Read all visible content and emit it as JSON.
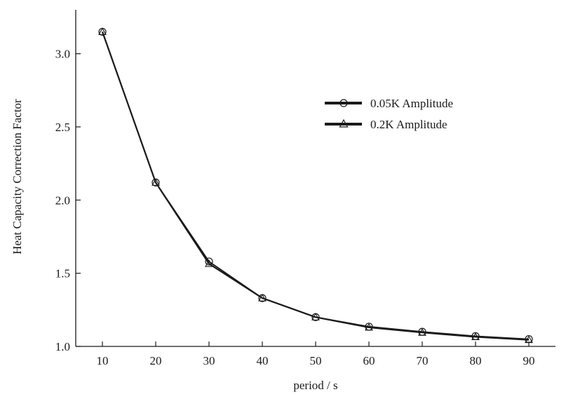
{
  "chart_data": {
    "type": "line",
    "title": "",
    "xlabel": "period / s",
    "ylabel": "Heat Capacity Correction Factor",
    "x": [
      10,
      20,
      30,
      40,
      50,
      60,
      70,
      80,
      90
    ],
    "xlim": [
      5,
      95
    ],
    "ylim": [
      1.0,
      3.3
    ],
    "xticks": [
      10,
      20,
      30,
      40,
      50,
      60,
      70,
      80,
      90
    ],
    "yticks": [
      1.0,
      1.5,
      2.0,
      2.5,
      3.0
    ],
    "ytick_labels": [
      "1.0",
      "1.5",
      "2.0",
      "2.5",
      "3.0"
    ],
    "grid": false,
    "legend_position": "upper-right",
    "series": [
      {
        "name": "0.05K Amplitude",
        "marker": "circle",
        "values": [
          3.15,
          2.12,
          1.58,
          1.33,
          1.2,
          1.135,
          1.1,
          1.07,
          1.05
        ]
      },
      {
        "name": "0.2K Amplitude",
        "marker": "triangle",
        "values": [
          3.15,
          2.12,
          1.565,
          1.33,
          1.2,
          1.13,
          1.095,
          1.065,
          1.045
        ]
      }
    ],
    "colors": {
      "line": "#1a1a1a",
      "axis": "#1a1a1a",
      "background": "#ffffff"
    }
  }
}
